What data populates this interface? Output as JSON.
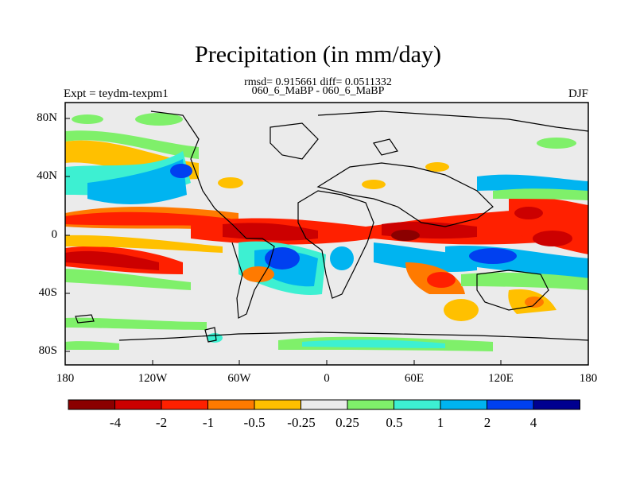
{
  "title": "Precipitation (in mm/day)",
  "stats_line": "rmsd= 0.915661 diff= 0.0511332",
  "subtitle": "060_6_MaBP - 060_6_MaBP",
  "left_label": "Expt = teydm-texpm1",
  "right_label": "DJF",
  "map": {
    "lat_ticks": [
      "80N",
      "40N",
      "0",
      "40S",
      "80S"
    ],
    "lon_ticks": [
      "180",
      "120W",
      "60W",
      "0",
      "60E",
      "120E",
      "180"
    ],
    "land_color": "#e6e6e6"
  },
  "colorbar": {
    "labels": [
      "-4",
      "-2",
      "-1",
      "-0.5",
      "-0.25",
      "0.25",
      "0.5",
      "1",
      "2",
      "4"
    ],
    "colors": [
      "#8b0000",
      "#cc0000",
      "#ff2000",
      "#ff7a00",
      "#ffc000",
      "#ebebeb",
      "#7ff06a",
      "#3df0d2",
      "#00b4f0",
      "#0040f0",
      "#000090"
    ]
  }
}
